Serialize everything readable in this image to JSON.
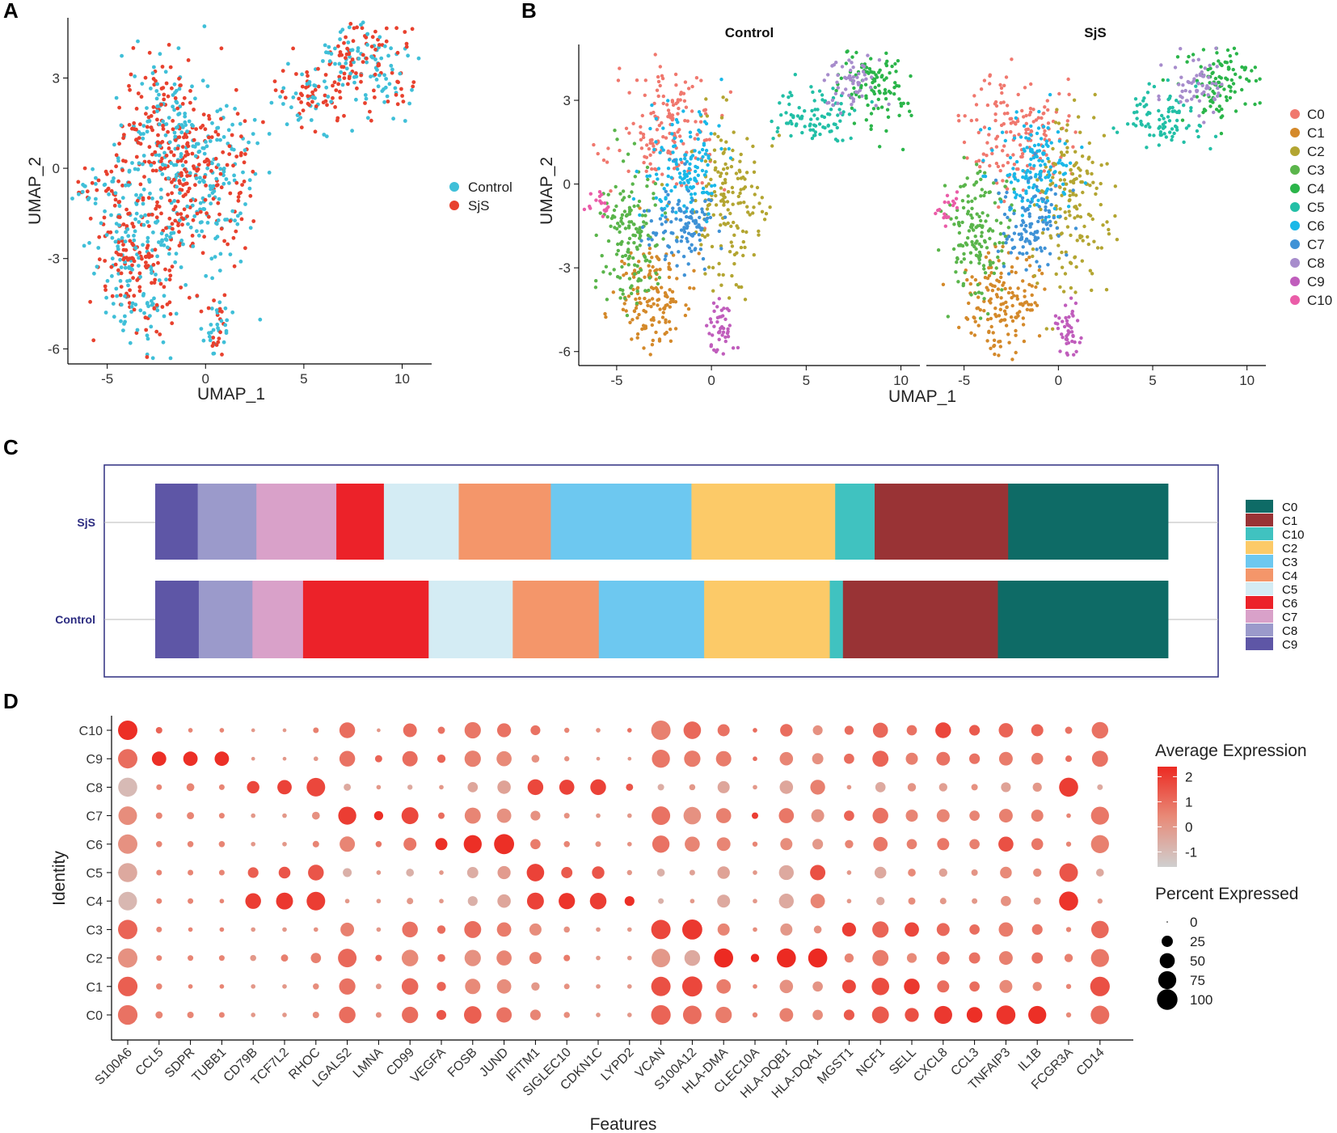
{
  "panel_letters": [
    "A",
    "B",
    "C",
    "D"
  ],
  "chart_data": [
    {
      "panel": "A",
      "type": "scatter",
      "xlabel": "UMAP_1",
      "ylabel": "UMAP_2",
      "xlim": [
        -7,
        11.5
      ],
      "ylim": [
        -6.5,
        5
      ],
      "xticks": [
        -5,
        0,
        5,
        10
      ],
      "yticks": [
        -6,
        -3,
        0,
        3
      ],
      "xtick_labels": [
        "-5",
        "0",
        "5",
        "10"
      ],
      "ytick_labels": [
        "-6",
        "-3",
        "0",
        "3"
      ],
      "legend": [
        {
          "name": "Control",
          "color": "#3fbfd8"
        },
        {
          "name": "SjS",
          "color": "#e8412e"
        }
      ]
    },
    {
      "panel": "B",
      "type": "scatter",
      "facets": [
        "Control",
        "SjS"
      ],
      "xlabel": "UMAP_1",
      "ylabel": "UMAP_2",
      "xlim": [
        -7,
        11
      ],
      "ylim": [
        -6.5,
        5
      ],
      "xticks": [
        -5,
        0,
        5,
        10
      ],
      "yticks": [
        -6,
        -3,
        0,
        3
      ],
      "xtick_labels": [
        "-5",
        "0",
        "5",
        "10"
      ],
      "ytick_labels": [
        "-6",
        "-3",
        "0",
        "3"
      ],
      "clusters": [
        {
          "name": "C0",
          "color": "#f0786e",
          "center": [
            -2.2,
            1.8
          ]
        },
        {
          "name": "C1",
          "color": "#d4892a",
          "center": [
            -3.0,
            -4.0
          ]
        },
        {
          "name": "C2",
          "color": "#b3a531",
          "center": [
            0.8,
            -0.5
          ]
        },
        {
          "name": "C3",
          "color": "#5ab54b",
          "center": [
            -4.3,
            -1.8
          ]
        },
        {
          "name": "C4",
          "color": "#2bb54a",
          "center": [
            8.8,
            3.6
          ]
        },
        {
          "name": "C5",
          "color": "#22bfa6",
          "center": [
            5.5,
            2.4
          ]
        },
        {
          "name": "C6",
          "color": "#1ab8e8",
          "center": [
            -1.3,
            0.5
          ]
        },
        {
          "name": "C7",
          "color": "#3f92d6",
          "center": [
            -1.5,
            -1.6
          ]
        },
        {
          "name": "C8",
          "color": "#a78ccc",
          "center": [
            7.2,
            3.6
          ]
        },
        {
          "name": "C9",
          "color": "#c05dbc",
          "center": [
            0.6,
            -5.2
          ]
        },
        {
          "name": "C10",
          "color": "#ea5ca8",
          "center": [
            -6.0,
            -0.8
          ]
        }
      ]
    },
    {
      "panel": "C",
      "type": "bar",
      "orientation": "horizontal-stacked",
      "categories": [
        "SjS",
        "Control"
      ],
      "stack_order": [
        "C9",
        "C8",
        "C7",
        "C6",
        "C5",
        "C4",
        "C3",
        "C2",
        "C10",
        "C1",
        "C0"
      ],
      "series": [
        {
          "name": "C0",
          "color": "#0e6b66",
          "values": [
            15.8,
            16.8
          ]
        },
        {
          "name": "C1",
          "color": "#993335",
          "values": [
            13.2,
            15.3
          ]
        },
        {
          "name": "C10",
          "color": "#40c2c0",
          "values": [
            3.9,
            1.3
          ]
        },
        {
          "name": "C2",
          "color": "#fcca68",
          "values": [
            14.2,
            12.4
          ]
        },
        {
          "name": "C3",
          "color": "#6dc8f0",
          "values": [
            13.9,
            10.4
          ]
        },
        {
          "name": "C4",
          "color": "#f4966a",
          "values": [
            9.1,
            8.5
          ]
        },
        {
          "name": "C5",
          "color": "#d4ecf4",
          "values": [
            7.4,
            8.3
          ]
        },
        {
          "name": "C6",
          "color": "#ec2229",
          "values": [
            4.7,
            12.4
          ]
        },
        {
          "name": "C7",
          "color": "#d9a1c9",
          "values": [
            7.9,
            5.0
          ]
        },
        {
          "name": "C8",
          "color": "#9b9acb",
          "values": [
            5.8,
            5.3
          ]
        },
        {
          "name": "C9",
          "color": "#5e56a6",
          "values": [
            4.2,
            4.3
          ]
        }
      ],
      "legend": [
        "C0",
        "C1",
        "C10",
        "C2",
        "C3",
        "C4",
        "C5",
        "C6",
        "C7",
        "C8",
        "C9"
      ]
    },
    {
      "panel": "D",
      "type": "scatter",
      "subtype": "dot-plot",
      "xlabel": "Features",
      "ylabel": "Identity",
      "features": [
        "S100A6",
        "CCL5",
        "SDPR",
        "TUBB1",
        "CD79B",
        "TCF7L2",
        "RHOC",
        "LGALS2",
        "LMNA",
        "CD99",
        "VEGFA",
        "FOSB",
        "JUND",
        "IFITM1",
        "SIGLEC10",
        "CDKN1C",
        "LYPD2",
        "VCAN",
        "S100A12",
        "HLA-DMA",
        "CLEC10A",
        "HLA-DQB1",
        "HLA-DQA1",
        "MGST1",
        "NCF1",
        "SELL",
        "CXCL8",
        "CCL3",
        "TNFAIP3",
        "IL1B",
        "FCGR3A",
        "CD14"
      ],
      "identities": [
        "C10",
        "C9",
        "C8",
        "C7",
        "C6",
        "C5",
        "C4",
        "C3",
        "C2",
        "C1",
        "C0"
      ],
      "color_legend": {
        "title": "Average Expression",
        "ticks": [
          2,
          1,
          0,
          -1
        ],
        "tick_labels": [
          "2",
          "1",
          "0",
          "-1"
        ],
        "range": [
          -1.6,
          2.4
        ],
        "low_color": "#cfcfcf",
        "high_color": "#ec2a22"
      },
      "size_legend": {
        "title": "Percent Expressed",
        "values": [
          0,
          25,
          50,
          75,
          100
        ],
        "labels": [
          "0",
          "25",
          "50",
          "75",
          "100"
        ]
      },
      "percent": [
        [
          88,
          6,
          2,
          2,
          1,
          1,
          4,
          55,
          1,
          40,
          8,
          60,
          42,
          18,
          3,
          2,
          2,
          88,
          70,
          30,
          2,
          32,
          18,
          15,
          50,
          20,
          55,
          22,
          45,
          30,
          8,
          62
        ],
        [
          88,
          45,
          45,
          45,
          1,
          1,
          2,
          55,
          8,
          52,
          12,
          60,
          50,
          10,
          3,
          1,
          1,
          75,
          60,
          52,
          2,
          38,
          25,
          20,
          58,
          30,
          40,
          22,
          40,
          28,
          6,
          58
        ],
        [
          85,
          4,
          10,
          4,
          32,
          45,
          80,
          8,
          2,
          3,
          2,
          20,
          38,
          55,
          50,
          55,
          8,
          6,
          5,
          30,
          2,
          38,
          48,
          2,
          20,
          12,
          12,
          6,
          18,
          15,
          85,
          4
        ],
        [
          80,
          6,
          8,
          4,
          2,
          2,
          10,
          75,
          15,
          65,
          6,
          58,
          45,
          18,
          4,
          2,
          2,
          80,
          70,
          50,
          6,
          50,
          35,
          20,
          55,
          30,
          35,
          20,
          40,
          30,
          2,
          75
        ],
        [
          88,
          5,
          5,
          5,
          2,
          2,
          6,
          52,
          5,
          35,
          30,
          75,
          95,
          20,
          5,
          4,
          2,
          68,
          50,
          40,
          3,
          30,
          22,
          12,
          45,
          20,
          30,
          20,
          50,
          28,
          3,
          75
        ],
        [
          85,
          4,
          4,
          4,
          22,
          28,
          55,
          14,
          2,
          10,
          2,
          25,
          36,
          70,
          25,
          32,
          3,
          10,
          4,
          32,
          2,
          48,
          52,
          2,
          28,
          10,
          12,
          6,
          28,
          12,
          80,
          10
        ],
        [
          80,
          4,
          4,
          2,
          55,
          65,
          80,
          2,
          2,
          6,
          2,
          18,
          38,
          65,
          60,
          62,
          18,
          4,
          2,
          35,
          2,
          48,
          45,
          2,
          12,
          8,
          6,
          4,
          20,
          8,
          85,
          3
        ],
        [
          88,
          4,
          2,
          2,
          2,
          2,
          2,
          40,
          2,
          55,
          12,
          65,
          45,
          30,
          5,
          2,
          2,
          88,
          95,
          30,
          2,
          30,
          10,
          42,
          60,
          45,
          35,
          20,
          45,
          22,
          3,
          70
        ],
        [
          88,
          4,
          4,
          4,
          5,
          8,
          20,
          80,
          6,
          62,
          10,
          60,
          50,
          30,
          6,
          2,
          2,
          80,
          55,
          85,
          12,
          85,
          85,
          15,
          58,
          18,
          35,
          25,
          40,
          25,
          12,
          75
        ],
        [
          90,
          5,
          2,
          2,
          2,
          2,
          5,
          60,
          4,
          62,
          15,
          52,
          45,
          12,
          4,
          2,
          2,
          88,
          95,
          45,
          2,
          38,
          20,
          40,
          70,
          55,
          30,
          20,
          35,
          15,
          3,
          90
        ],
        [
          90,
          8,
          6,
          4,
          2,
          2,
          6,
          62,
          4,
          60,
          18,
          70,
          52,
          22,
          5,
          2,
          2,
          90,
          80,
          60,
          3,
          40,
          20,
          22,
          65,
          42,
          75,
          55,
          85,
          75,
          3,
          80
        ]
      ],
      "expression": [
        [
          2.3,
          1.2,
          0.5,
          0.5,
          0,
          0,
          0.6,
          1.0,
          0,
          1.0,
          0.9,
          0.8,
          0.9,
          0.9,
          0.5,
          0.2,
          0.9,
          0.6,
          1.1,
          0.9,
          1.0,
          1.0,
          0.2,
          1.0,
          1.1,
          0.9,
          1.8,
          1.4,
          1.2,
          1.2,
          0.9,
          0.9
        ],
        [
          1.0,
          2.3,
          2.3,
          2.3,
          0,
          0,
          0,
          0.9,
          1.2,
          1.0,
          1.2,
          0.6,
          0.4,
          0.2,
          0.2,
          0,
          0,
          0.8,
          0.7,
          0.7,
          1.0,
          0.5,
          0.2,
          1.0,
          1.2,
          0.6,
          0.9,
          0.9,
          0.7,
          0.7,
          1.0,
          0.9
        ],
        [
          -1.0,
          0.5,
          0.5,
          0.5,
          1.8,
          1.9,
          1.8,
          -0.5,
          0,
          -0.5,
          0,
          -0.4,
          -0.3,
          1.8,
          1.9,
          1.9,
          1.5,
          -0.6,
          0,
          -0.4,
          0,
          -0.4,
          0.6,
          0,
          -0.5,
          0.1,
          -0.2,
          0.2,
          -0.3,
          0,
          2.0,
          -0.5
        ],
        [
          0.3,
          0.5,
          0.5,
          0.5,
          0,
          0,
          0.2,
          2.0,
          2.3,
          1.8,
          1.0,
          0.5,
          0.2,
          0.2,
          0.2,
          0,
          0,
          0.9,
          0.2,
          0.6,
          2.0,
          0.8,
          0.1,
          1.2,
          0.9,
          0.5,
          0.5,
          0.5,
          0.6,
          0.6,
          0.5,
          0.8
        ],
        [
          0.2,
          0.5,
          0.5,
          0.5,
          0,
          0,
          0.5,
          0.5,
          0.8,
          0.8,
          2.3,
          2.3,
          2.3,
          0.7,
          0.5,
          0.2,
          0.2,
          0.9,
          0.5,
          0.5,
          0.5,
          0.3,
          0,
          0.5,
          0.8,
          0.6,
          0.8,
          0.6,
          1.6,
          0.8,
          0.5,
          0.6
        ],
        [
          -0.5,
          0.5,
          0.5,
          0.5,
          1.3,
          1.5,
          1.5,
          -0.7,
          0,
          -0.7,
          0,
          -0.6,
          -0.1,
          1.9,
          1.4,
          1.5,
          0,
          -0.7,
          -0.3,
          -0.3,
          0,
          -0.5,
          1.6,
          0,
          -0.5,
          0.4,
          -0.3,
          0.1,
          0.4,
          0.3,
          1.5,
          -0.5
        ],
        [
          -0.9,
          0.5,
          0.5,
          0.5,
          2.0,
          2.1,
          2.0,
          0,
          0,
          0,
          0,
          -0.7,
          -0.4,
          1.9,
          2.2,
          2.0,
          2.3,
          -0.7,
          0,
          -0.5,
          0,
          -0.5,
          0.5,
          0,
          -0.5,
          0.3,
          0,
          0,
          0.2,
          0,
          2.2,
          0
        ],
        [
          1.2,
          0.5,
          0.5,
          0.5,
          0,
          0,
          0.2,
          0.6,
          0,
          0.9,
          1.0,
          1.0,
          0.7,
          0.3,
          0.2,
          0,
          0,
          1.8,
          2.1,
          0.5,
          0.3,
          0,
          0.2,
          2.0,
          1.2,
          1.8,
          1.1,
          1.0,
          0.7,
          0.8,
          0.5,
          1.1
        ],
        [
          0.2,
          0.5,
          0.5,
          0.5,
          0,
          0.6,
          0.6,
          1.1,
          1.0,
          0.4,
          1.0,
          0.2,
          0.5,
          0.6,
          0.7,
          0,
          0,
          0,
          -0.5,
          2.4,
          2.4,
          2.4,
          2.4,
          0.5,
          0.7,
          0.4,
          1.0,
          0.9,
          0.6,
          0.9,
          0.6,
          0.8
        ],
        [
          1.3,
          0.5,
          0.5,
          0.5,
          0,
          0,
          0.3,
          0.9,
          0,
          1.1,
          1.2,
          0.4,
          0.3,
          0,
          0.2,
          0,
          0,
          1.6,
          1.8,
          0.7,
          0.5,
          0.2,
          0.1,
          1.8,
          1.7,
          2.1,
          1.0,
          1.0,
          0.4,
          0.4,
          0.5,
          1.6
        ],
        [
          0.9,
          0.5,
          0.5,
          0.5,
          0,
          0,
          0.3,
          1.0,
          0.2,
          1.0,
          1.5,
          1.3,
          0.9,
          0.5,
          0.3,
          0,
          0,
          1.2,
          1.0,
          0.7,
          0.5,
          0.6,
          0.3,
          1.4,
          1.4,
          1.6,
          2.1,
          2.3,
          2.2,
          2.3,
          0.4,
          1.0
        ]
      ]
    }
  ]
}
